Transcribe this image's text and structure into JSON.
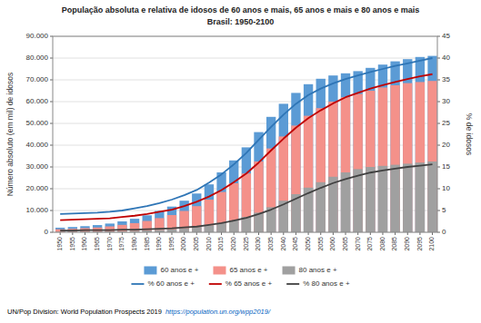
{
  "chart_data": {
    "type": "bar",
    "title": "População absoluta e relativa de idosos de 60 anos e mais, 65 anos e mais e 80 anos e mais",
    "subtitle": "Brasil: 1950-2100",
    "ylabel": "Número absoluto (em mil) de idosos",
    "y2label": "% de idosos",
    "annotations": [
      "UN/Pop Division: World Population Prospects 2019 ",
      "https://population.un.org/wpp2019/"
    ],
    "x": [
      1950,
      1955,
      1960,
      1965,
      1970,
      1975,
      1980,
      1985,
      1990,
      1995,
      2000,
      2005,
      2010,
      2015,
      2020,
      2025,
      2030,
      2035,
      2040,
      2045,
      2050,
      2055,
      2060,
      2065,
      2070,
      2075,
      2080,
      2085,
      2090,
      2095,
      2100
    ],
    "xlim": [
      1947,
      2102
    ],
    "xticks": [
      1950,
      1955,
      1960,
      1965,
      1970,
      1975,
      1980,
      1985,
      1990,
      1995,
      2000,
      2005,
      2010,
      2015,
      2020,
      2025,
      2030,
      2035,
      2040,
      2045,
      2050,
      2055,
      2060,
      2065,
      2070,
      2075,
      2080,
      2085,
      2090,
      2095,
      2100
    ],
    "ylim": [
      0,
      90000
    ],
    "yticks": [
      0,
      {
        "value": 10000,
        "label": "10.000"
      },
      {
        "value": 20000,
        "label": "20.000"
      },
      {
        "value": 30000,
        "label": "30.000"
      },
      {
        "value": 40000,
        "label": "40.000"
      },
      {
        "value": 50000,
        "label": "50.000"
      },
      {
        "value": 60000,
        "label": "60.000"
      },
      {
        "value": 70000,
        "label": "70.000"
      },
      {
        "value": 80000,
        "label": "80.000"
      },
      {
        "value": 90000,
        "label": "90.000"
      }
    ],
    "y2lim": [
      0,
      45
    ],
    "y2ticks": [
      0,
      5,
      10,
      15,
      20,
      25,
      30,
      35,
      40,
      45
    ],
    "grid": true,
    "legend": "bottom",
    "stacked": false,
    "series": [
      {
        "name": "60 anos e +",
        "type": "bar",
        "color": "#5B9BD5",
        "values": [
          2100,
          2400,
          2800,
          3300,
          4000,
          5000,
          6200,
          7800,
          9800,
          11800,
          14500,
          17800,
          22000,
          27500,
          33000,
          39000,
          46000,
          53000,
          59000,
          64000,
          68000,
          70500,
          72000,
          73000,
          74000,
          75500,
          77000,
          78500,
          79500,
          80500,
          81000
        ]
      },
      {
        "name": "65 anos e +",
        "type": "bar",
        "color": "#F4918A",
        "values": [
          1400,
          1600,
          1900,
          2200,
          2700,
          3400,
          4200,
          5200,
          6500,
          7900,
          9800,
          12000,
          15000,
          18500,
          22500,
          27000,
          32500,
          38500,
          44000,
          49000,
          53500,
          57000,
          60000,
          62000,
          63500,
          65000,
          66500,
          67500,
          68500,
          69000,
          69500
        ]
      },
      {
        "name": "80 anos e +",
        "type": "bar",
        "color": "#A0A0A0",
        "values": [
          200,
          250,
          300,
          360,
          440,
          550,
          680,
          850,
          1100,
          1400,
          1850,
          2400,
          3200,
          4200,
          5500,
          7000,
          9000,
          11500,
          14500,
          17500,
          20500,
          23000,
          25500,
          27500,
          29000,
          30000,
          30500,
          31000,
          31500,
          32000,
          32500
        ]
      },
      {
        "name": "% 60 anos e +",
        "type": "line",
        "axis": "y2",
        "color": "#2E75B6",
        "values": [
          4.2,
          4.3,
          4.4,
          4.5,
          4.7,
          5.0,
          5.5,
          6.0,
          6.7,
          7.5,
          8.5,
          9.7,
          11.4,
          13.3,
          15.6,
          18.2,
          21.2,
          24.2,
          27.0,
          29.5,
          31.5,
          33.0,
          34.2,
          35.2,
          36.0,
          36.8,
          37.5,
          38.2,
          38.8,
          39.4,
          40.0
        ]
      },
      {
        "name": "% 65 anos e +",
        "type": "line",
        "axis": "y2",
        "color": "#C00000",
        "values": [
          2.8,
          2.9,
          3.0,
          3.1,
          3.2,
          3.5,
          3.8,
          4.2,
          4.7,
          5.2,
          6.0,
          7.0,
          8.2,
          9.7,
          11.5,
          13.5,
          16.0,
          18.8,
          21.5,
          24.0,
          26.2,
          28.0,
          29.6,
          31.0,
          32.0,
          33.0,
          33.8,
          34.5,
          35.2,
          35.8,
          36.3
        ]
      },
      {
        "name": "% 80 anos e +",
        "type": "line",
        "axis": "y2",
        "color": "#404040",
        "values": [
          0.4,
          0.4,
          0.5,
          0.5,
          0.5,
          0.6,
          0.6,
          0.7,
          0.8,
          0.9,
          1.1,
          1.3,
          1.7,
          2.1,
          2.7,
          3.3,
          4.2,
          5.2,
          6.4,
          7.7,
          9.0,
          10.2,
          11.3,
          12.2,
          13.0,
          13.7,
          14.2,
          14.6,
          15.0,
          15.3,
          15.6
        ]
      }
    ]
  }
}
